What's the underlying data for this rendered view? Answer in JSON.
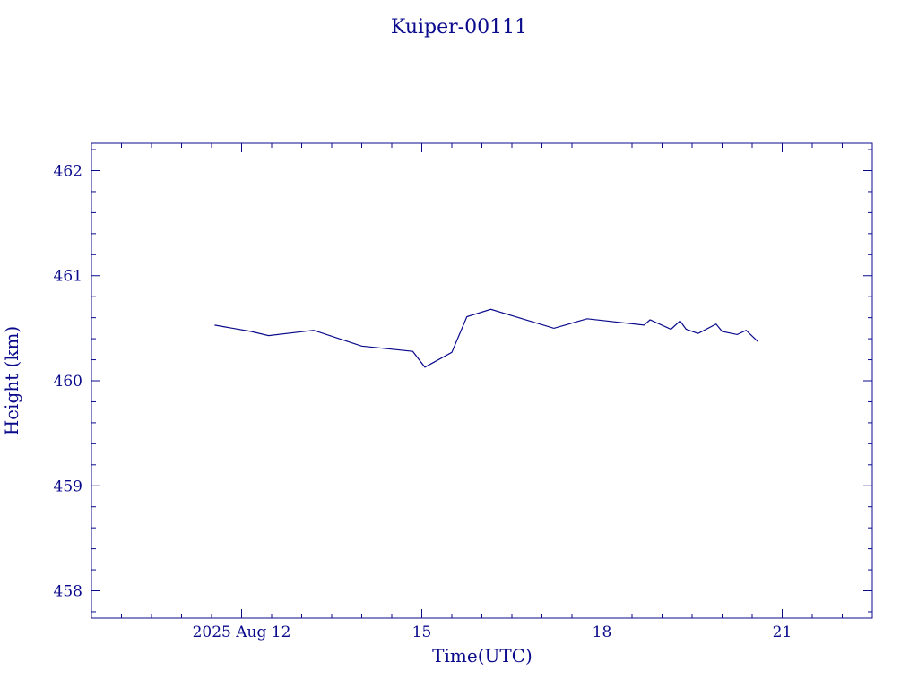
{
  "colors": {
    "ink": "#0a0a8c",
    "background": "#ffffff"
  },
  "chart_data": {
    "type": "line",
    "title": "Kuiper-00111",
    "xlabel": "Time(UTC)",
    "ylabel": "Height (km)",
    "x_unit": "days (August 2025)",
    "xlim": [
      9.5,
      22.5
    ],
    "ylim": [
      457.74,
      462.26
    ],
    "x_ticks": [
      {
        "value": 12,
        "label": "2025 Aug 12"
      },
      {
        "value": 15,
        "label": "15"
      },
      {
        "value": 18,
        "label": "18"
      },
      {
        "value": 21,
        "label": "21"
      }
    ],
    "y_ticks": [
      {
        "value": 458,
        "label": "458"
      },
      {
        "value": 459,
        "label": "459"
      },
      {
        "value": 460,
        "label": "460"
      },
      {
        "value": 461,
        "label": "461"
      },
      {
        "value": 462,
        "label": "462"
      }
    ],
    "grid": false,
    "series": [
      {
        "x": [
          11.55,
          12.15,
          12.45,
          13.2,
          14.0,
          14.85,
          15.05,
          15.5,
          15.75,
          16.15,
          17.2,
          17.75,
          18.7,
          18.8,
          19.15,
          19.3,
          19.4,
          19.6,
          19.9,
          20.0,
          20.25,
          20.4,
          20.6
        ],
        "y": [
          460.53,
          460.47,
          460.43,
          460.48,
          460.33,
          460.28,
          460.13,
          460.27,
          460.61,
          460.68,
          460.5,
          460.59,
          460.53,
          460.58,
          460.49,
          460.57,
          460.49,
          460.45,
          460.54,
          460.47,
          460.44,
          460.48,
          460.37
        ]
      }
    ]
  }
}
